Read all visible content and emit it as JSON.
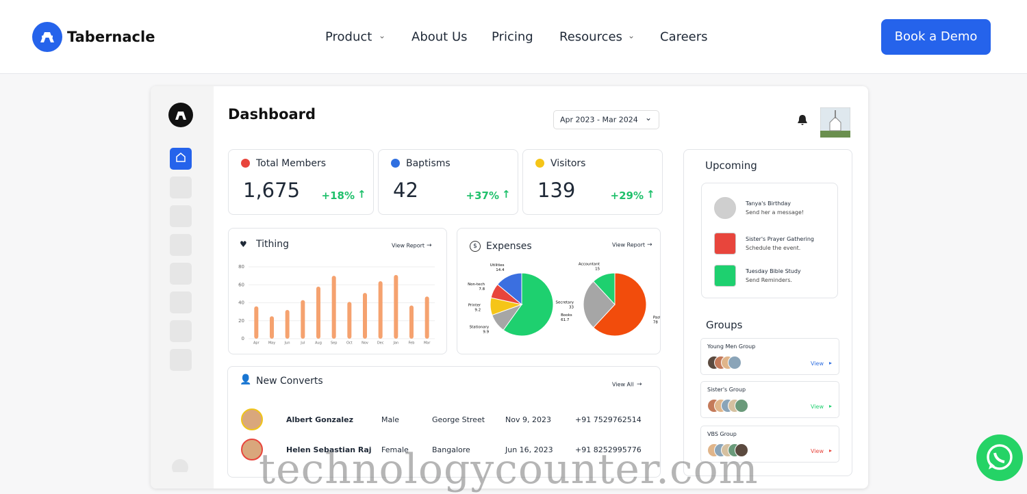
{
  "header": {
    "brand": "Tabernacle",
    "nav": [
      "Product",
      "About Us",
      "Pricing",
      "Resources",
      "Careers"
    ],
    "cta": "Book a Demo"
  },
  "dashboard": {
    "title": "Dashboard",
    "date_range": "Apr 2023 - Mar 2024",
    "stats": [
      {
        "label": "Total Members",
        "value": "1,675",
        "change": "+18%"
      },
      {
        "label": "Baptisms",
        "value": "42",
        "change": "+37%"
      },
      {
        "label": "Visitors",
        "value": "139",
        "change": "+29%"
      }
    ],
    "tithing_link": "View Report",
    "expenses_link": "View Report",
    "upcoming": {
      "title": "Upcoming",
      "items": [
        {
          "title": "Tanya's Birthday",
          "subtitle": "Send her a message!"
        },
        {
          "title": "Sister's Prayer Gathering",
          "subtitle": "Schedule the event."
        },
        {
          "title": "Tuesday Bible Study",
          "subtitle": "Send Reminders."
        }
      ]
    },
    "groups": {
      "title": "Groups",
      "items": [
        {
          "name": "Young Men Group",
          "action": "View"
        },
        {
          "name": "Sister's Group",
          "action": "View"
        },
        {
          "name": "VBS Group",
          "action": "View"
        }
      ]
    },
    "converts": {
      "title": "New Converts",
      "link": "View All",
      "rows": [
        [
          "Albert Gonzalez",
          "Male",
          "George Street",
          "Nov 9, 2023",
          "+91 7529762514"
        ],
        [
          "Helen Sebastian Raj",
          "Female",
          "Bangalore",
          "Jun 16, 2023",
          "+91 8252995776"
        ]
      ]
    }
  },
  "chart_data": [
    {
      "type": "bar",
      "title": "Tithing",
      "categories": [
        "Apr",
        "May",
        "Jun",
        "Jul",
        "Aug",
        "Sep",
        "Oct",
        "Nov",
        "Dec",
        "Jan",
        "Feb",
        "Mar"
      ],
      "values": [
        36,
        25,
        32,
        43,
        58,
        70,
        41,
        51,
        64,
        71,
        37,
        47
      ],
      "color": "#f5a26f",
      "ylim": [
        0,
        80
      ],
      "yticks": [
        0,
        20,
        40,
        60,
        80
      ],
      "grid": true
    },
    {
      "type": "pie",
      "title": "Expenses",
      "categories": [
        "Books",
        "Stationary",
        "Printer",
        "Non-tech",
        "Utilities"
      ],
      "values": [
        61.7,
        9.9,
        9.2,
        7.8,
        14.4
      ],
      "colors": [
        "#1ed06f",
        "#a6a6a6",
        "#f5c518",
        "#e8453c",
        "#3b6fe0"
      ]
    },
    {
      "type": "pie",
      "categories": [
        "Pastor",
        "Secretary",
        "Accountant"
      ],
      "values": [
        78,
        33,
        15
      ],
      "colors": [
        "#f24c0c",
        "#a6a6a6",
        "#1ed06f"
      ]
    }
  ],
  "watermark": "technologycounter.com"
}
